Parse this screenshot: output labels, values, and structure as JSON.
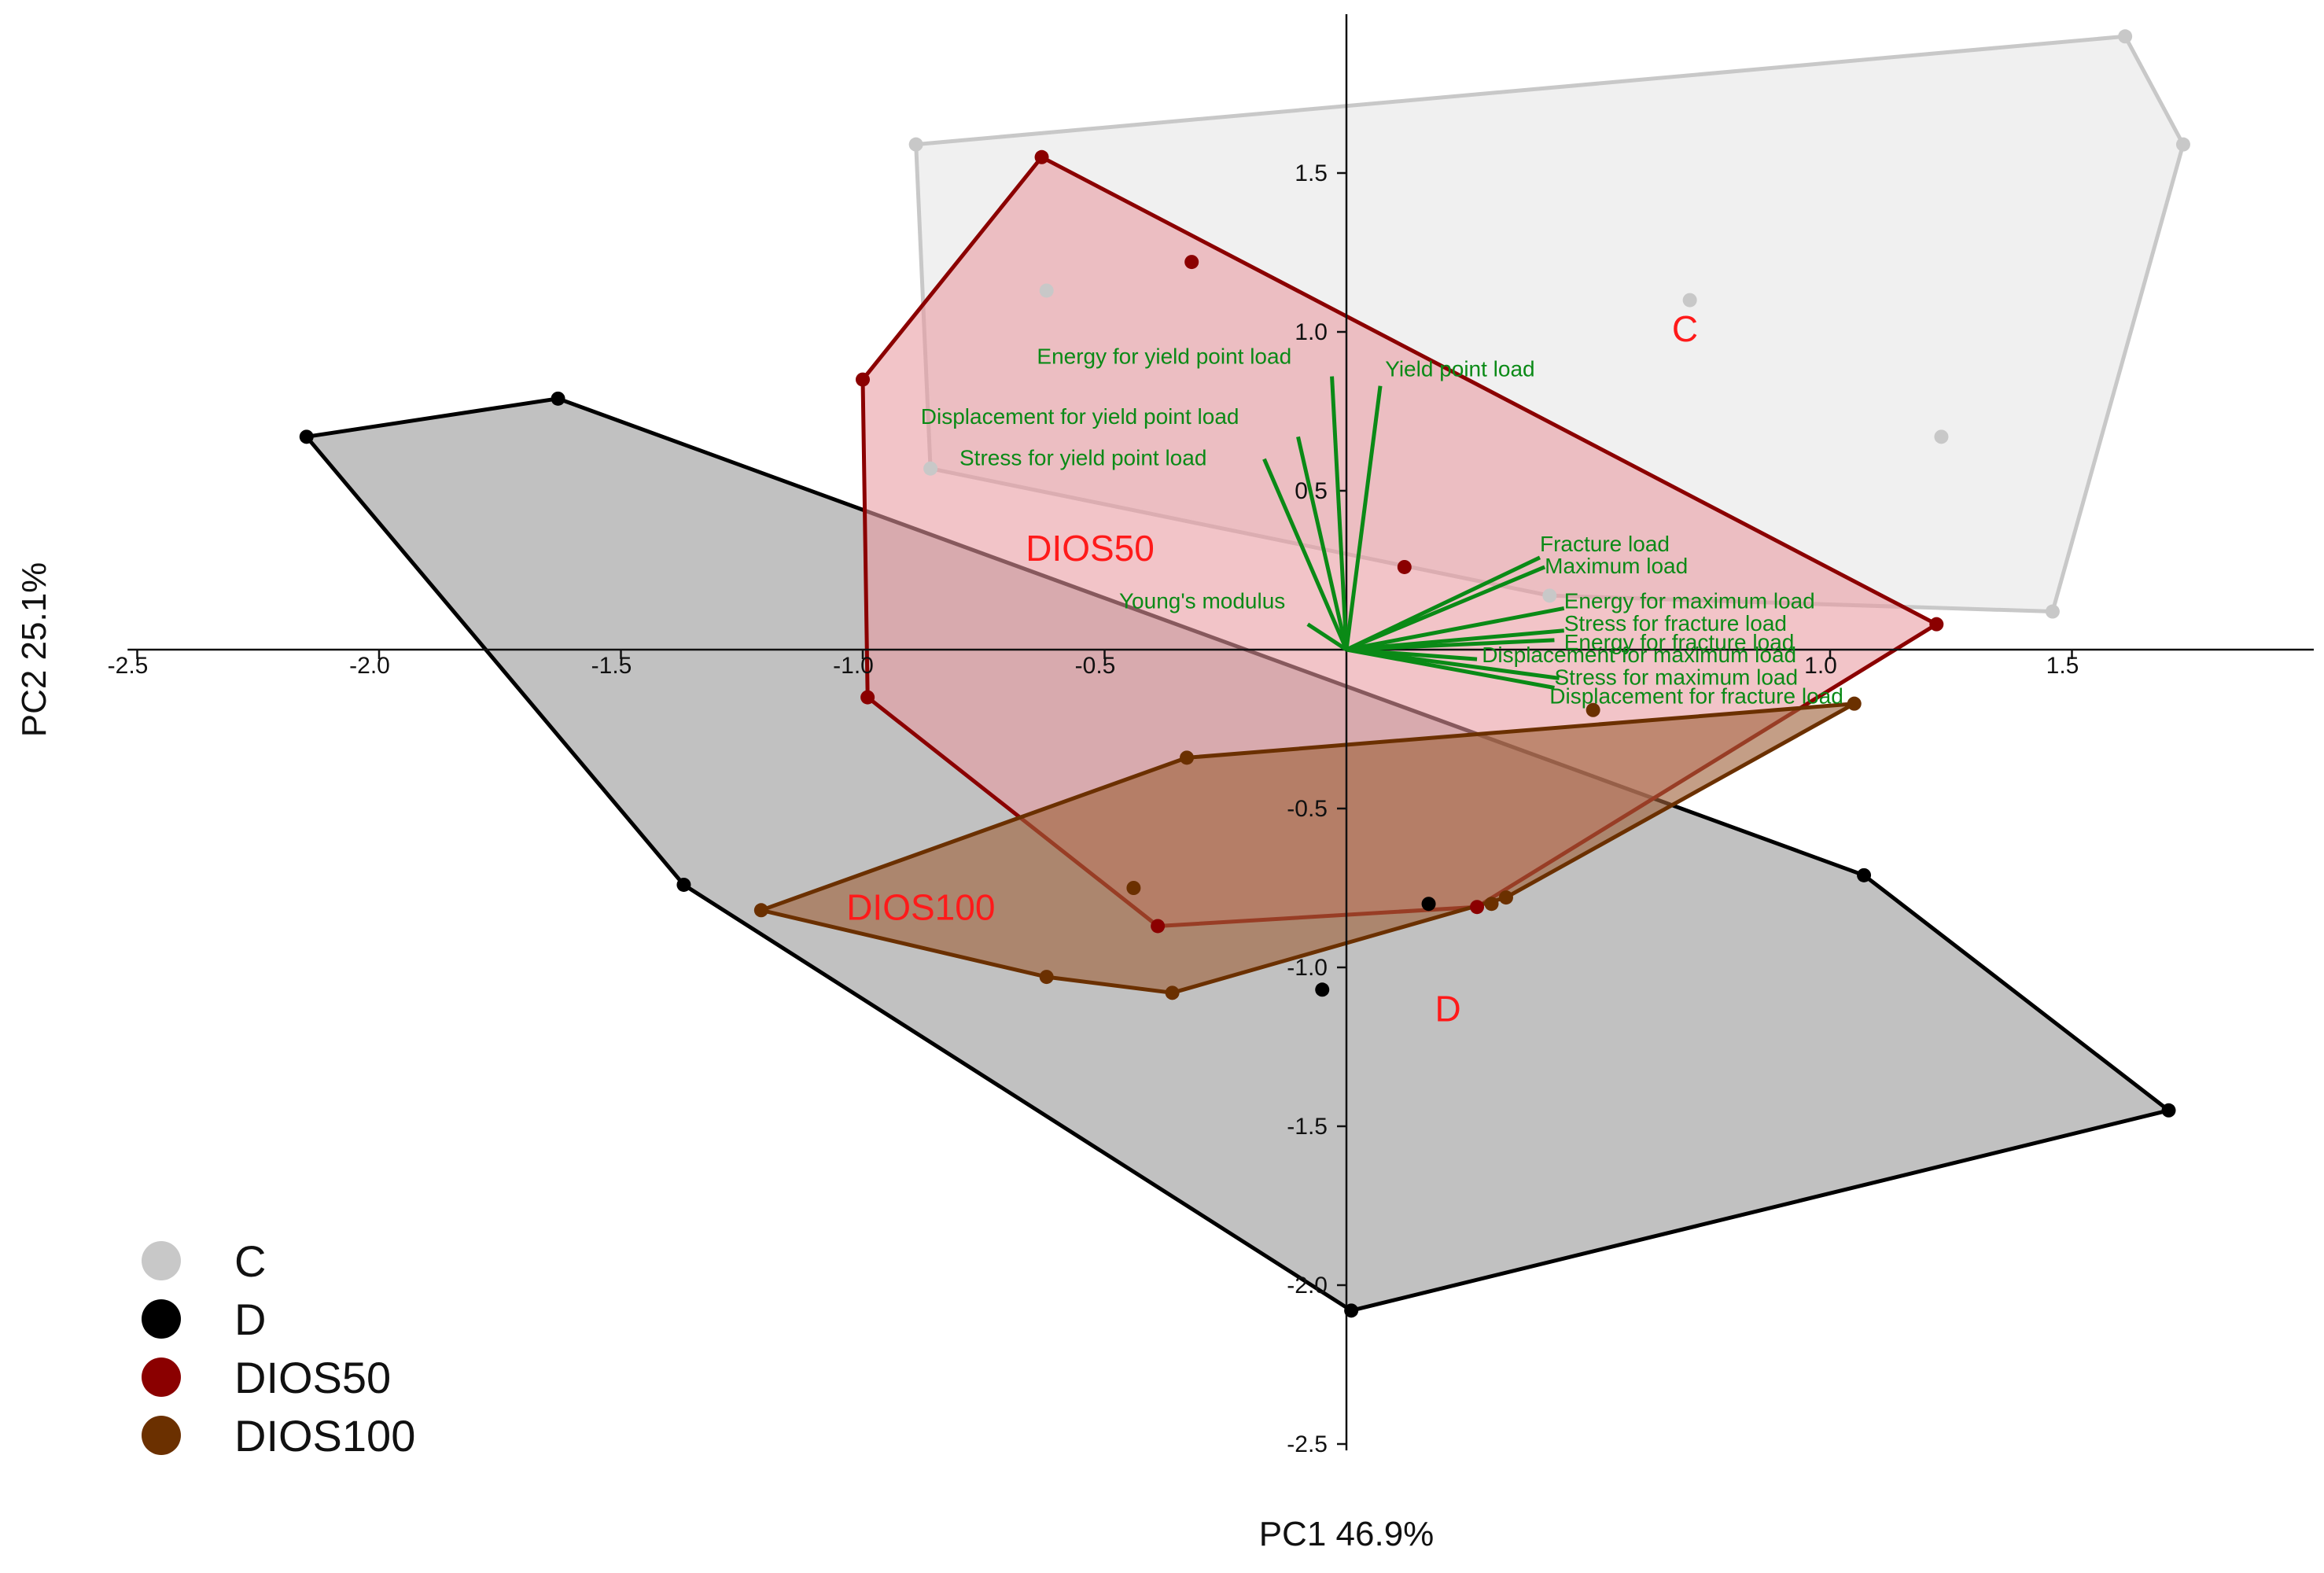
{
  "chart_data": {
    "type": "scatter",
    "subtype": "pca-biplot",
    "xlabel": "PC1 46.9%",
    "ylabel": "PC2 25.1%",
    "xlim": [
      -2.5,
      2.0
    ],
    "ylim": [
      -2.5,
      2.0
    ],
    "x_ticks": [
      {
        "value": -2.5,
        "label": "-2.5"
      },
      {
        "value": -2.0,
        "label": "-2.0"
      },
      {
        "value": -1.5,
        "label": "-1.5"
      },
      {
        "value": -1.0,
        "label": "-1.0"
      },
      {
        "value": -0.5,
        "label": "-0.5"
      },
      {
        "value": 1.0,
        "label": "1.0"
      },
      {
        "value": 1.5,
        "label": "1.5"
      }
    ],
    "y_ticks": [
      {
        "value": 1.5,
        "label": "1.5"
      },
      {
        "value": 1.0,
        "label": "1.0"
      },
      {
        "value": 0.5,
        "label": "0.5"
      },
      {
        "value": -0.5,
        "label": "-0.5"
      },
      {
        "value": -1.0,
        "label": "-1.0"
      },
      {
        "value": -1.5,
        "label": "-1.5"
      },
      {
        "value": -2.0,
        "label": "-2.0"
      },
      {
        "value": -2.5,
        "label": "-2.5"
      }
    ],
    "grid": false,
    "legend_position": "bottom-left",
    "series": [
      {
        "name": "C",
        "color": "#c8c8c8",
        "fill": "#e6e6e6",
        "fill_opacity": 0.62,
        "hull_stroke": "#c8c8c8",
        "label_pos": [
          0.7,
          0.97
        ],
        "points": [
          [
            -0.89,
            1.59
          ],
          [
            -0.62,
            1.13
          ],
          [
            -0.86,
            0.57
          ],
          [
            0.71,
            1.1
          ],
          [
            1.61,
            1.93
          ],
          [
            1.73,
            1.59
          ],
          [
            1.23,
            0.67
          ],
          [
            1.46,
            0.12
          ],
          [
            0.42,
            0.17
          ]
        ],
        "hull": [
          [
            -0.89,
            1.59
          ],
          [
            1.61,
            1.93
          ],
          [
            1.73,
            1.59
          ],
          [
            1.46,
            0.12
          ],
          [
            0.42,
            0.17
          ],
          [
            -0.86,
            0.57
          ]
        ]
      },
      {
        "name": "D",
        "color": "#000000",
        "fill": "#a9a9a9",
        "fill_opacity": 0.72,
        "hull_stroke": "#000000",
        "label_pos": [
          0.21,
          -1.17
        ],
        "points": [
          [
            -2.15,
            0.67
          ],
          [
            -1.63,
            0.79
          ],
          [
            -1.37,
            -0.74
          ],
          [
            0.01,
            -2.08
          ],
          [
            1.7,
            -1.45
          ],
          [
            1.07,
            -0.71
          ],
          [
            0.17,
            -0.8
          ],
          [
            -0.05,
            -1.07
          ]
        ],
        "hull": [
          [
            -2.15,
            0.67
          ],
          [
            -1.63,
            0.79
          ],
          [
            1.07,
            -0.71
          ],
          [
            1.7,
            -1.45
          ],
          [
            0.01,
            -2.08
          ],
          [
            -1.37,
            -0.74
          ]
        ]
      },
      {
        "name": "DIOS50",
        "color": "#8b0000",
        "fill": "#e89aa0",
        "fill_opacity": 0.58,
        "hull_stroke": "#8b0000",
        "label_pos": [
          -0.53,
          0.28
        ],
        "points": [
          [
            -0.63,
            1.55
          ],
          [
            -0.32,
            1.22
          ],
          [
            -1.0,
            0.85
          ],
          [
            -0.99,
            -0.15
          ],
          [
            -0.39,
            -0.87
          ],
          [
            0.27,
            -0.81
          ],
          [
            0.12,
            0.26
          ],
          [
            1.22,
            0.08
          ]
        ],
        "hull": [
          [
            -0.63,
            1.55
          ],
          [
            1.22,
            0.08
          ],
          [
            0.27,
            -0.81
          ],
          [
            -0.39,
            -0.87
          ],
          [
            -0.99,
            -0.15
          ],
          [
            -1.0,
            0.85
          ]
        ]
      },
      {
        "name": "DIOS100",
        "color": "#6b3000",
        "fill": "#a0623c",
        "fill_opacity": 0.62,
        "hull_stroke": "#6b3000",
        "label_pos": [
          -0.88,
          -0.85
        ],
        "points": [
          [
            -1.21,
            -0.82
          ],
          [
            -0.62,
            -1.03
          ],
          [
            -0.36,
            -1.08
          ],
          [
            -0.33,
            -0.34
          ],
          [
            -0.44,
            -0.75
          ],
          [
            0.3,
            -0.8
          ],
          [
            0.33,
            -0.78
          ],
          [
            1.05,
            -0.17
          ],
          [
            0.51,
            -0.19
          ]
        ],
        "hull": [
          [
            -1.21,
            -0.82
          ],
          [
            -0.33,
            -0.34
          ],
          [
            1.05,
            -0.17
          ],
          [
            0.33,
            -0.78
          ],
          [
            -0.36,
            -1.08
          ],
          [
            -0.62,
            -1.03
          ]
        ]
      }
    ],
    "loadings_color": "#0a8a16",
    "loadings": [
      {
        "name": "Energy for yield point load",
        "x": -0.03,
        "y": 0.86,
        "label_pos": [
          -0.64,
          0.9
        ],
        "anchor": "start"
      },
      {
        "name": "Yield point load",
        "x": 0.07,
        "y": 0.83,
        "label_pos": [
          0.08,
          0.86
        ],
        "anchor": "start"
      },
      {
        "name": "Displacement for yield point load",
        "x": -0.1,
        "y": 0.67,
        "label_pos": [
          -0.88,
          0.71
        ],
        "anchor": "start"
      },
      {
        "name": "Stress for yield point load",
        "x": -0.17,
        "y": 0.6,
        "label_pos": [
          -0.8,
          0.58
        ],
        "anchor": "start"
      },
      {
        "name": "Young's modulus",
        "x": -0.08,
        "y": 0.08,
        "label_pos": [
          -0.47,
          0.13
        ],
        "anchor": "start"
      },
      {
        "name": "Fracture load",
        "x": 0.4,
        "y": 0.29,
        "label_pos": [
          0.4,
          0.31
        ],
        "anchor": "start"
      },
      {
        "name": "Maximum load",
        "x": 0.41,
        "y": 0.26,
        "label_pos": [
          0.41,
          0.24
        ],
        "anchor": "start"
      },
      {
        "name": "Energy for maximum load",
        "x": 0.45,
        "y": 0.13,
        "label_pos": [
          0.45,
          0.13
        ],
        "anchor": "start"
      },
      {
        "name": "Stress for fracture load",
        "x": 0.45,
        "y": 0.06,
        "label_pos": [
          0.45,
          0.06
        ],
        "anchor": "start"
      },
      {
        "name": "Energy for fracture load",
        "x": 0.43,
        "y": 0.03,
        "label_pos": [
          0.45,
          0.0
        ],
        "anchor": "start"
      },
      {
        "name": "Displacement for maximum load",
        "x": 0.27,
        "y": -0.03,
        "label_pos": [
          0.28,
          -0.04
        ],
        "anchor": "start"
      },
      {
        "name": "Stress for maximum load",
        "x": 0.44,
        "y": -0.09,
        "label_pos": [
          0.43,
          -0.11
        ],
        "anchor": "start"
      },
      {
        "name": "Displacement for fracture load",
        "x": 0.43,
        "y": -0.12,
        "label_pos": [
          0.42,
          -0.17
        ],
        "anchor": "start"
      }
    ]
  }
}
